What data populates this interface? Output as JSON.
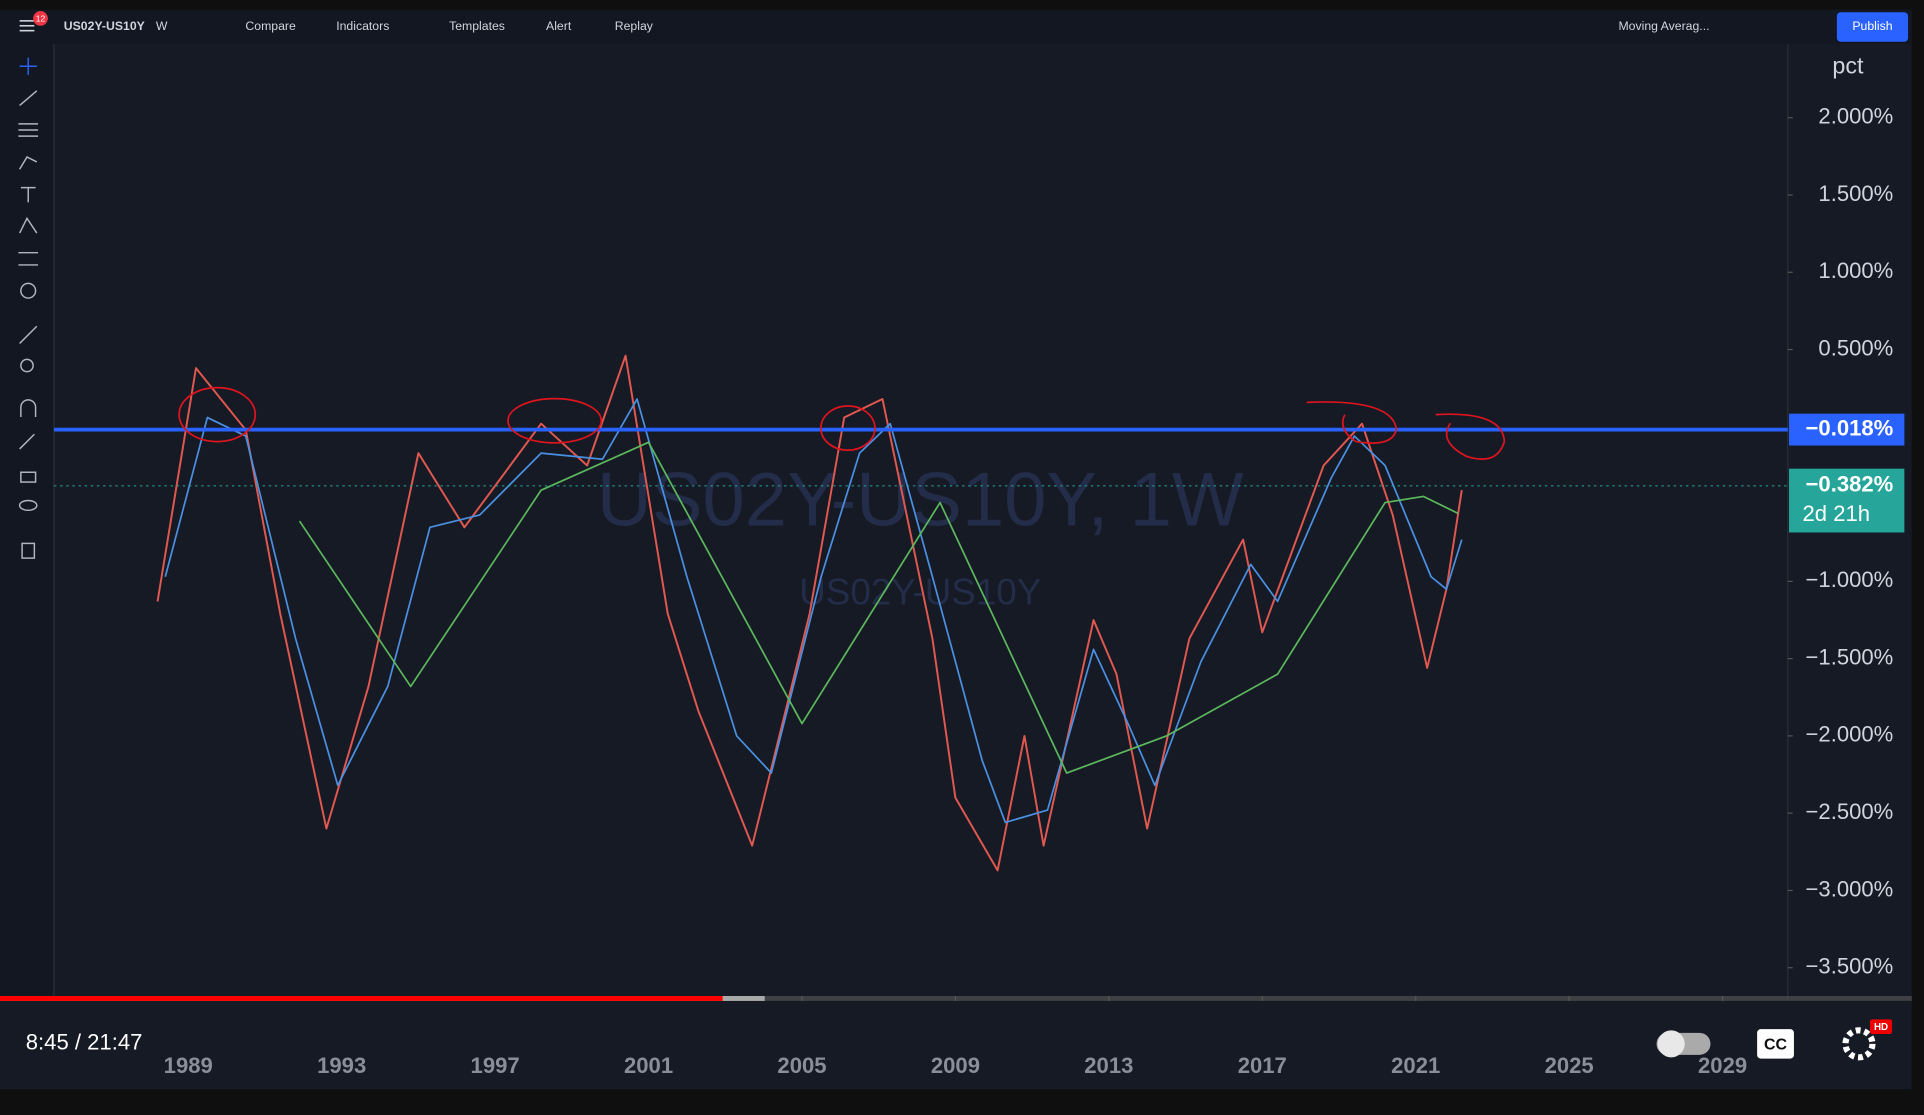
{
  "toolbar": {
    "badge": "12",
    "symbol": "US02Y-US10Y",
    "interval": "W",
    "items": [
      "Compare",
      "Indicators",
      "Templates",
      "Alert",
      "Replay"
    ],
    "indicator": "Moving Averag...",
    "publish": "Publish"
  },
  "chart_data": {
    "type": "line",
    "watermark": "US02Y-US10Y, 1W",
    "watermark_sub": "US02Y-US10Y",
    "scale_unit": "pct",
    "xlim": [
      1985.5,
      2030.7
    ],
    "ylim": [
      -3.683,
      2.476
    ],
    "xticks": [
      1989,
      1993,
      1997,
      2001,
      2005,
      2009,
      2013,
      2017,
      2021,
      2025,
      2029
    ],
    "yticks": [
      {
        "value": 2,
        "label": "2.000%"
      },
      {
        "value": 1.5,
        "label": "1.500%"
      },
      {
        "value": 1,
        "label": "1.000%"
      },
      {
        "value": 0.5,
        "label": "0.500%"
      },
      {
        "value": -1,
        "label": "−1.000%"
      },
      {
        "value": -1.5,
        "label": "−1.500%"
      },
      {
        "value": -2,
        "label": "−2.000%"
      },
      {
        "value": -2.5,
        "label": "−2.500%"
      },
      {
        "value": -3,
        "label": "−3.000%"
      },
      {
        "value": -3.5,
        "label": "−3.500%"
      }
    ],
    "series": [
      {
        "color": "#e0584f",
        "x": [
          1988.2,
          1989.2,
          1990.5,
          1991.4,
          1992.6,
          1993.7,
          1995.0,
          1996.2,
          1998.2,
          1999.4,
          2000.4,
          2001.5,
          2002.3,
          2003.7,
          2005.2,
          2006.1,
          2007.1,
          2008.4,
          2009.0,
          2010.1,
          2010.8,
          2011.3,
          2012.6,
          2013.2,
          2014.0,
          2015.1,
          2016.5,
          2017.0,
          2018.6,
          2019.6,
          2020.4,
          2021.3,
          2021.8,
          2022.2
        ],
        "values": [
          -1.13,
          0.38,
          -0.02,
          -1.21,
          -2.6,
          -1.68,
          -0.17,
          -0.65,
          0.02,
          -0.25,
          0.46,
          -1.21,
          -1.84,
          -2.71,
          -1.21,
          0.06,
          0.18,
          -1.37,
          -2.4,
          -2.87,
          -2.0,
          -2.71,
          -1.25,
          -1.6,
          -2.6,
          -1.37,
          -0.73,
          -1.33,
          -0.25,
          0.02,
          -0.57,
          -1.56,
          -1.05,
          -0.41
        ]
      },
      {
        "color": "#4a90e2",
        "x": [
          1988.4,
          1989.5,
          1990.5,
          1991.8,
          1992.9,
          1994.2,
          1995.3,
          1996.6,
          1998.2,
          1999.8,
          2000.7,
          2002.0,
          2003.3,
          2004.2,
          2005.5,
          2006.5,
          2007.3,
          2008.4,
          2009.7,
          2010.3,
          2011.4,
          2012.6,
          2013.5,
          2014.2,
          2015.4,
          2016.7,
          2017.4,
          2018.8,
          2019.4,
          2020.2,
          2021.4,
          2021.8,
          2022.2
        ],
        "values": [
          -0.97,
          0.06,
          -0.06,
          -1.37,
          -2.32,
          -1.68,
          -0.65,
          -0.57,
          -0.17,
          -0.21,
          0.18,
          -0.97,
          -2.0,
          -2.24,
          -0.97,
          -0.17,
          0.02,
          -0.97,
          -2.16,
          -2.56,
          -2.48,
          -1.44,
          -1.92,
          -2.32,
          -1.52,
          -0.89,
          -1.13,
          -0.33,
          -0.06,
          -0.25,
          -0.97,
          -1.05,
          -0.73
        ]
      },
      {
        "color": "#5cb85c",
        "x": [
          1991.9,
          1994.8,
          1998.2,
          2001.0,
          2005.0,
          2008.6,
          2011.9,
          2014.5,
          2017.4,
          2020.2,
          2021.2,
          2022.1
        ],
        "values": [
          -0.61,
          -1.68,
          -0.41,
          -0.1,
          -1.92,
          -0.49,
          -2.24,
          -2.0,
          -1.6,
          -0.49,
          -0.45,
          -0.56
        ]
      }
    ],
    "hlines": [
      {
        "value": -0.018,
        "label": "−0.018%",
        "color": "#2962ff"
      },
      {
        "value": -0.382,
        "label": "−0.382%",
        "countdown": "2d 21h",
        "color": "#26a69a"
      }
    ]
  },
  "video_player": {
    "time": "8:45 / 21:47",
    "progress": 0.378,
    "buffered": 0.4,
    "cc": "CC",
    "hd": "HD"
  }
}
